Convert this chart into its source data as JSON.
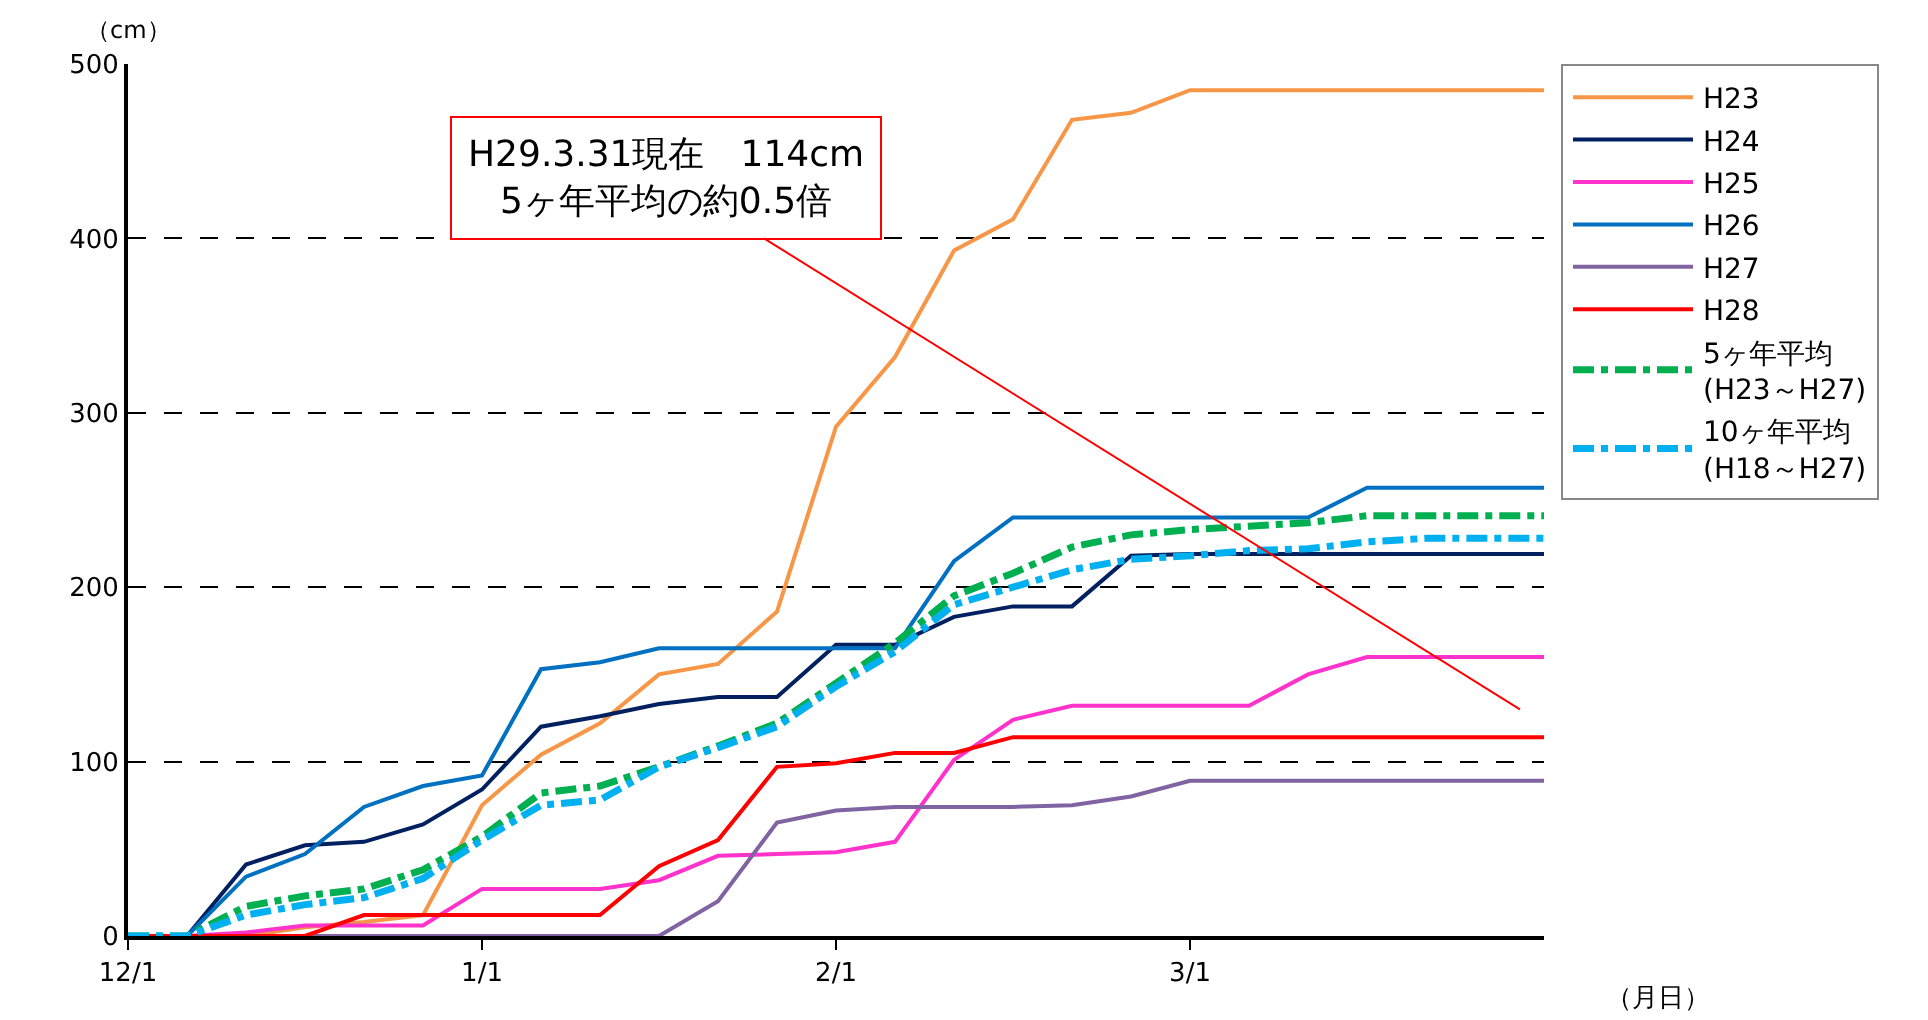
{
  "chart_data": {
    "type": "line",
    "ylabel": "（cm）",
    "xlabel": "（月日）",
    "categories": [
      "12/1",
      null,
      null,
      null,
      null,
      null,
      "1/1",
      null,
      null,
      null,
      null,
      null,
      "2/1",
      null,
      null,
      null,
      null,
      null,
      "3/1",
      null,
      null,
      null,
      null,
      null,
      null
    ],
    "series": [
      {
        "name": "H23",
        "color": "#f79646",
        "values": [
          0,
          0,
          0,
          5,
          8,
          12,
          75,
          104,
          122,
          150,
          156,
          186,
          292,
          332,
          393,
          411,
          468,
          472,
          485,
          485,
          485,
          485,
          485,
          485,
          485
        ]
      },
      {
        "name": "H24",
        "color": "#002060",
        "values": [
          0,
          0,
          41,
          52,
          54,
          64,
          84,
          120,
          126,
          133,
          137,
          137,
          167,
          167,
          183,
          189,
          189,
          218,
          219,
          219,
          219,
          219,
          219,
          219,
          219
        ]
      },
      {
        "name": "H25",
        "color": "#ff33cc",
        "values": [
          0,
          0,
          2,
          6,
          6,
          6,
          27,
          27,
          27,
          32,
          46,
          47,
          48,
          54,
          101,
          124,
          132,
          132,
          132,
          132,
          150,
          160,
          160,
          160,
          160
        ]
      },
      {
        "name": "H26",
        "color": "#0070c0",
        "values": [
          0,
          0,
          34,
          47,
          74,
          86,
          92,
          153,
          157,
          165,
          165,
          165,
          165,
          165,
          215,
          240,
          240,
          240,
          240,
          240,
          240,
          257,
          257,
          257,
          257
        ]
      },
      {
        "name": "H27",
        "color": "#8064a2",
        "values": [
          0,
          0,
          0,
          0,
          0,
          0,
          0,
          0,
          0,
          0,
          20,
          65,
          72,
          74,
          74,
          74,
          75,
          80,
          89,
          89,
          89,
          89,
          89,
          89,
          89
        ]
      },
      {
        "name": "H28",
        "color": "#ff0000",
        "values": [
          0,
          0,
          0,
          0,
          12,
          12,
          12,
          12,
          12,
          40,
          55,
          97,
          99,
          105,
          105,
          114,
          114,
          114,
          114,
          114,
          114,
          114,
          114,
          114,
          114
        ]
      },
      {
        "name": "5ヶ年平均\n(H23～H27)",
        "color": "#00b050",
        "line_style": "dashdot",
        "values": [
          0,
          0,
          17,
          23,
          27,
          38,
          57,
          82,
          86,
          97,
          109,
          122,
          145,
          168,
          195,
          208,
          223,
          230,
          233,
          235,
          237,
          241,
          241,
          241,
          241
        ]
      },
      {
        "name": "10ヶ年平均\n(H18～H27)",
        "color": "#00b0f0",
        "line_style": "dashdot",
        "values": [
          0,
          0,
          12,
          18,
          22,
          33,
          55,
          75,
          78,
          97,
          108,
          120,
          143,
          163,
          190,
          200,
          210,
          216,
          218,
          221,
          222,
          226,
          228,
          228,
          228
        ]
      }
    ],
    "ylim": [
      0,
      500
    ],
    "yticks": [
      0,
      100,
      200,
      300,
      400,
      500
    ],
    "grid": "y",
    "legend": "right",
    "line_style": "solid",
    "marker": "none",
    "annotations": [
      "H29.3.31現在　114cm\n5ヶ年平均の約0.5倍"
    ]
  }
}
